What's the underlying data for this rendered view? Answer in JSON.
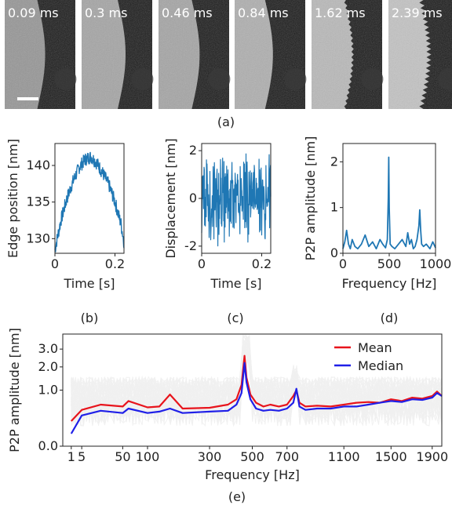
{
  "panel_a": {
    "label": "(a)",
    "frames": [
      {
        "time": "0.09 ms",
        "edge": 0.55,
        "ripple": 0,
        "tone": 150
      },
      {
        "time": "0.3 ms",
        "edge": 0.6,
        "ripple": 0,
        "tone": 165
      },
      {
        "time": "0.46 ms",
        "edge": 0.56,
        "ripple": 0,
        "tone": 165
      },
      {
        "time": "0.84 ms",
        "edge": 0.52,
        "ripple": 0,
        "tone": 175
      },
      {
        "time": "1.62 ms",
        "edge": 0.56,
        "ripple": 0.5,
        "tone": 185
      },
      {
        "time": "2.39 ms",
        "edge": 0.55,
        "ripple": 1,
        "tone": 195
      }
    ]
  },
  "chart_data": [
    {
      "id": "b",
      "panel_label": "(b)",
      "type": "line",
      "xlabel": "Time [s]",
      "ylabel": "Edge position [nm]",
      "xlim": [
        0,
        0.23
      ],
      "ylim": [
        128,
        143
      ],
      "xticks": [
        {
          "v": 0,
          "t": "0"
        },
        {
          "v": 0.2,
          "t": "0.2"
        }
      ],
      "yticks": [
        {
          "v": 130,
          "t": "130"
        },
        {
          "v": 135,
          "t": "135"
        },
        {
          "v": 140,
          "t": "140"
        }
      ],
      "series": [
        {
          "color": "#1f77b4",
          "x": [
            0,
            0.02,
            0.04,
            0.06,
            0.08,
            0.1,
            0.12,
            0.14,
            0.16,
            0.18,
            0.2,
            0.22,
            0.23
          ],
          "y": [
            128.5,
            132.5,
            135.5,
            137.8,
            139.7,
            140.8,
            141.2,
            140.3,
            138.9,
            137.3,
            135.0,
            132.0,
            129.5
          ]
        }
      ]
    },
    {
      "id": "c",
      "panel_label": "(c)",
      "type": "line",
      "xlabel": "Time [s]",
      "ylabel": "Displacement [nm]",
      "xlim": [
        0,
        0.23
      ],
      "ylim": [
        -2.3,
        2.3
      ],
      "xticks": [
        {
          "v": 0,
          "t": "0"
        },
        {
          "v": 0.2,
          "t": "0.2"
        }
      ],
      "yticks": [
        {
          "v": -2,
          "t": "-2"
        },
        {
          "v": 0,
          "t": "0"
        },
        {
          "v": 2,
          "t": "2"
        }
      ],
      "series": [
        {
          "color": "#1f77b4",
          "x": [
            0,
            0.23
          ],
          "y": [
            0,
            0
          ]
        }
      ]
    },
    {
      "id": "d",
      "panel_label": "(d)",
      "type": "line",
      "xlabel": "Frequency [Hz]",
      "ylabel": "P2P amplitude [nm]",
      "xlim": [
        0,
        1000
      ],
      "ylim": [
        0,
        2.4
      ],
      "xticks": [
        {
          "v": 0,
          "t": "0"
        },
        {
          "v": 500,
          "t": "500"
        },
        {
          "v": 1000,
          "t": "1000"
        }
      ],
      "yticks": [
        {
          "v": 0,
          "t": "0"
        },
        {
          "v": 1,
          "t": "1"
        },
        {
          "v": 2,
          "t": "2"
        }
      ],
      "series": [
        {
          "color": "#1f77b4",
          "x": [
            0,
            20,
            40,
            60,
            80,
            100,
            130,
            160,
            200,
            240,
            280,
            320,
            360,
            400,
            430,
            460,
            480,
            490,
            495,
            500,
            510,
            530,
            560,
            600,
            640,
            680,
            700,
            720,
            740,
            760,
            780,
            800,
            820,
            830,
            840,
            850,
            870,
            900,
            940,
            970,
            1000
          ],
          "y": [
            0.1,
            0.25,
            0.5,
            0.2,
            0.1,
            0.3,
            0.15,
            0.1,
            0.2,
            0.4,
            0.15,
            0.25,
            0.1,
            0.3,
            0.2,
            0.12,
            0.3,
            1.2,
            2.1,
            1.0,
            0.2,
            0.15,
            0.1,
            0.2,
            0.3,
            0.15,
            0.45,
            0.2,
            0.3,
            0.1,
            0.15,
            0.3,
            0.6,
            0.95,
            0.5,
            0.2,
            0.15,
            0.2,
            0.1,
            0.25,
            0.12
          ]
        }
      ]
    },
    {
      "id": "e",
      "panel_label": "(e)",
      "type": "line",
      "xlabel": "Frequency [Hz]",
      "ylabel": "P2P amplitude [nm]",
      "xscale": "sqrt",
      "yscale": "sqrt",
      "xlim": [
        0,
        2000
      ],
      "ylim": [
        0,
        4.0
      ],
      "xticks": [
        {
          "v": 1,
          "t": "1"
        },
        {
          "v": 5,
          "t": "5"
        },
        {
          "v": 50,
          "t": "50"
        },
        {
          "v": 100,
          "t": "100"
        },
        {
          "v": 300,
          "t": "300"
        },
        {
          "v": 500,
          "t": "500"
        },
        {
          "v": 700,
          "t": "700"
        },
        {
          "v": 1100,
          "t": "1100"
        },
        {
          "v": 1500,
          "t": "1500"
        },
        {
          "v": 1900,
          "t": "1900"
        }
      ],
      "yticks": [
        {
          "v": 0.0,
          "t": "0.0"
        },
        {
          "v": 1.0,
          "t": "1.0"
        },
        {
          "v": 2.0,
          "t": "2.0"
        },
        {
          "v": 3.0,
          "t": "3.0"
        }
      ],
      "legend": {
        "position": "top-right"
      },
      "series": [
        {
          "name": "Mean",
          "color": "#e8141c",
          "x": [
            1,
            5,
            20,
            50,
            60,
            100,
            130,
            160,
            200,
            300,
            380,
            420,
            445,
            460,
            470,
            490,
            520,
            560,
            600,
            650,
            700,
            740,
            760,
            780,
            820,
            900,
            1000,
            1100,
            1200,
            1300,
            1400,
            1500,
            1600,
            1700,
            1800,
            1900,
            1950,
            2000
          ],
          "y": [
            0.2,
            0.42,
            0.55,
            0.5,
            0.65,
            0.48,
            0.5,
            0.85,
            0.45,
            0.47,
            0.55,
            0.7,
            1.2,
            2.6,
            1.5,
            0.85,
            0.6,
            0.5,
            0.55,
            0.5,
            0.55,
            0.8,
            1.0,
            0.6,
            0.5,
            0.52,
            0.5,
            0.55,
            0.6,
            0.62,
            0.6,
            0.7,
            0.65,
            0.75,
            0.72,
            0.8,
            0.95,
            0.8
          ]
        },
        {
          "name": "Median",
          "color": "#1f1fe8",
          "x": [
            1,
            5,
            20,
            50,
            60,
            100,
            130,
            160,
            200,
            300,
            380,
            420,
            445,
            460,
            470,
            490,
            520,
            560,
            600,
            650,
            700,
            740,
            760,
            780,
            820,
            900,
            1000,
            1100,
            1200,
            1300,
            1400,
            1500,
            1600,
            1700,
            1800,
            1900,
            1950,
            2000
          ],
          "y": [
            0.05,
            0.3,
            0.4,
            0.35,
            0.45,
            0.35,
            0.38,
            0.45,
            0.35,
            0.38,
            0.4,
            0.55,
            0.9,
            2.2,
            1.3,
            0.7,
            0.45,
            0.4,
            0.42,
            0.4,
            0.45,
            0.6,
            1.05,
            0.5,
            0.42,
            0.45,
            0.45,
            0.5,
            0.5,
            0.55,
            0.6,
            0.65,
            0.62,
            0.7,
            0.68,
            0.75,
            0.9,
            0.8
          ]
        }
      ]
    }
  ]
}
